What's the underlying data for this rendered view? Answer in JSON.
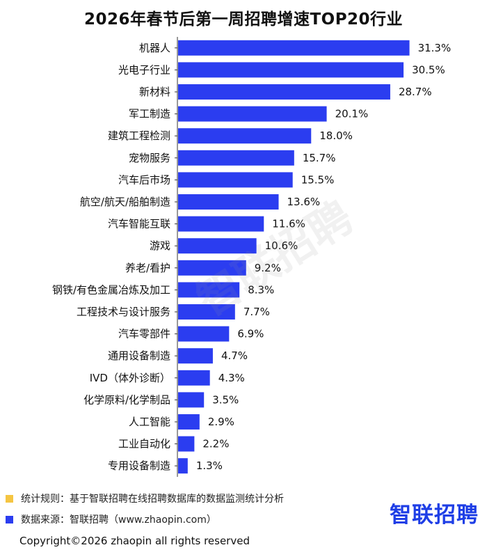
{
  "colors": {
    "bar": "#2b3df0",
    "footnote_square_1": "#f5c542",
    "footnote_square_2": "#2b3df0",
    "logo": "#1e3ee6"
  },
  "chart_data": {
    "type": "bar",
    "orientation": "horizontal",
    "title": "2026年春节后第一周招聘增速TOP20行业",
    "categories": [
      "机器人",
      "光电子行业",
      "新材料",
      "军工制造",
      "建筑工程检测",
      "宠物服务",
      "汽车后市场",
      "航空/航天/船舶制造",
      "汽车智能互联",
      "游戏",
      "养老/看护",
      "钢铁/有色金属冶炼及加工",
      "工程技术与设计服务",
      "汽车零部件",
      "通用设备制造",
      "IVD（体外诊断）",
      "化学原料/化学制品",
      "人工智能",
      "工业自动化",
      "专用设备制造"
    ],
    "values": [
      31.3,
      30.5,
      28.7,
      20.1,
      18.0,
      15.7,
      15.5,
      13.6,
      11.6,
      10.6,
      9.2,
      8.3,
      7.7,
      6.9,
      4.7,
      4.3,
      3.5,
      2.9,
      2.2,
      1.3
    ],
    "value_labels": [
      "31.3%",
      "30.5%",
      "28.7%",
      "20.1%",
      "18.0%",
      "15.7%",
      "15.5%",
      "13.6%",
      "11.6%",
      "10.6%",
      "9.2%",
      "8.3%",
      "7.7%",
      "6.9%",
      "4.7%",
      "4.3%",
      "3.5%",
      "2.9%",
      "2.2%",
      "1.3%"
    ],
    "unit": "%",
    "xlim": [
      0,
      32
    ],
    "grid": false,
    "legend": "none"
  },
  "footnotes": {
    "rule": "统计规则：基于智联招聘在线招聘数据库的数据监测统计分析",
    "source": "数据来源：智联招聘（www.zhaopin.com）"
  },
  "watermark": "智联招聘",
  "logo": "智联招聘",
  "copyright": "Copyright©2026 zhaopin all rights reserved"
}
